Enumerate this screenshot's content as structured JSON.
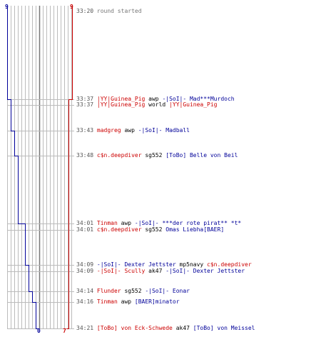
{
  "axis": {
    "blue_top": "9",
    "red_top": "9",
    "blue_bottom": "0",
    "red_bottom": "7"
  },
  "colors": {
    "blue_team": "#000099",
    "red_team": "#cc0000",
    "grid": "#bbbbbb",
    "time": "#555555"
  },
  "events": [
    {
      "time": "33:20",
      "parts": [
        {
          "text": "round started",
          "c": "gray"
        }
      ]
    },
    {
      "time": "33:37",
      "parts": [
        {
          "text": "|YY|Guinea_Pig",
          "c": "red"
        },
        {
          "text": " awp ",
          "c": "black"
        },
        {
          "text": "-|SoI|- Mad***Murdoch",
          "c": "blue"
        }
      ]
    },
    {
      "time": "33:37",
      "parts": [
        {
          "text": "|YY|Guinea_Pig",
          "c": "red"
        },
        {
          "text": " world ",
          "c": "black"
        },
        {
          "text": "|YY|Guinea_Pig",
          "c": "red"
        }
      ]
    },
    {
      "time": "33:43",
      "parts": [
        {
          "text": "madgreg",
          "c": "red"
        },
        {
          "text": " awp ",
          "c": "black"
        },
        {
          "text": "-|SoI|- Madball",
          "c": "blue"
        }
      ]
    },
    {
      "time": "33:48",
      "parts": [
        {
          "text": "c$n.deepdiver",
          "c": "red"
        },
        {
          "text": " sg552 ",
          "c": "black"
        },
        {
          "text": "[ToBo] Belle von Beil",
          "c": "blue"
        }
      ]
    },
    {
      "time": "34:01",
      "parts": [
        {
          "text": "Tinman",
          "c": "red"
        },
        {
          "text": " awp ",
          "c": "black"
        },
        {
          "text": "-|SoI|- ***der rote pirat** *t*",
          "c": "blue"
        }
      ]
    },
    {
      "time": "34:01",
      "parts": [
        {
          "text": "c$n.deepdiver",
          "c": "red"
        },
        {
          "text": " sg552 ",
          "c": "black"
        },
        {
          "text": "Omas Liebha[BAER]",
          "c": "blue"
        }
      ]
    },
    {
      "time": "34:09",
      "parts": [
        {
          "text": "-|SoI|- Dexter Jettster",
          "c": "blue"
        },
        {
          "text": " mp5navy ",
          "c": "black"
        },
        {
          "text": "c$n.deepdiver",
          "c": "red"
        }
      ]
    },
    {
      "time": "34:09",
      "parts": [
        {
          "text": "-|SoI|- Scully",
          "c": "red"
        },
        {
          "text": " ak47 ",
          "c": "black"
        },
        {
          "text": "-|SoI|- Dexter Jettster",
          "c": "blue"
        }
      ]
    },
    {
      "time": "34:14",
      "parts": [
        {
          "text": "Flunder",
          "c": "red"
        },
        {
          "text": " sg552 ",
          "c": "black"
        },
        {
          "text": "-|SoI|- Eonar",
          "c": "blue"
        }
      ]
    },
    {
      "time": "34:16",
      "parts": [
        {
          "text": "Tinman",
          "c": "red"
        },
        {
          "text": " awp ",
          "c": "black"
        },
        {
          "text": "[BAER]minator",
          "c": "blue"
        }
      ]
    },
    {
      "time": "34:21",
      "parts": [
        {
          "text": "[ToBo] von Eck-Schwede",
          "c": "red"
        },
        {
          "text": " ak47 ",
          "c": "black"
        },
        {
          "text": "[ToBo] von Meissel",
          "c": "blue"
        }
      ]
    }
  ]
}
